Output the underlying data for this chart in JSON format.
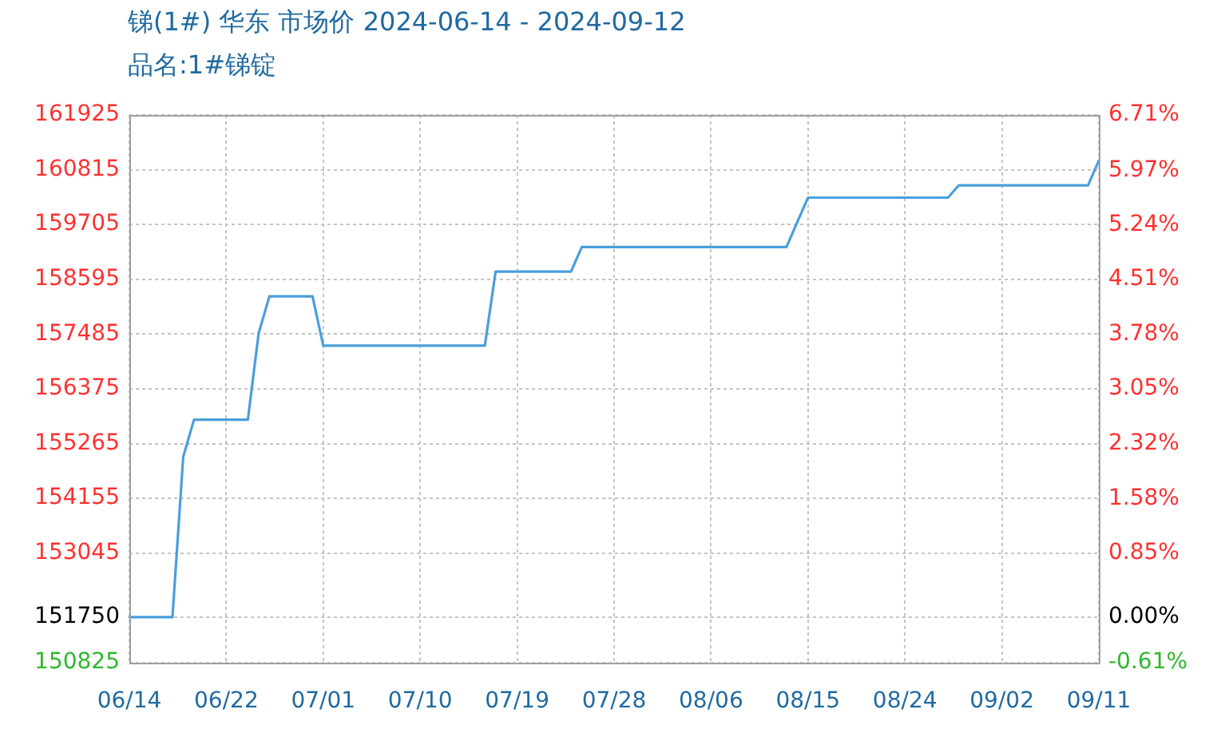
{
  "chart_data": {
    "type": "line",
    "title": "锑(1#) 华东 市场价 2024-06-14 - 2024-09-12",
    "subtitle": "品名:1#锑锭",
    "categories": [
      "06/14",
      null,
      null,
      null,
      null,
      null,
      null,
      null,
      null,
      "06/22",
      null,
      null,
      null,
      null,
      null,
      null,
      null,
      null,
      "07/01",
      null,
      null,
      null,
      null,
      null,
      null,
      null,
      null,
      "07/10",
      null,
      null,
      null,
      null,
      null,
      null,
      null,
      null,
      "07/19",
      null,
      null,
      null,
      null,
      null,
      null,
      null,
      null,
      "07/28",
      null,
      null,
      null,
      null,
      null,
      null,
      null,
      null,
      "08/06",
      null,
      null,
      null,
      null,
      null,
      null,
      null,
      null,
      "08/15",
      null,
      null,
      null,
      null,
      null,
      null,
      null,
      null,
      "08/24",
      null,
      null,
      null,
      null,
      null,
      null,
      null,
      null,
      "09/02",
      null,
      null,
      null,
      null,
      null,
      null,
      null,
      null,
      "09/11"
    ],
    "series": [
      {
        "color": "#4a9fdc",
        "values": [
          151750,
          151750,
          151750,
          151750,
          151750,
          155000,
          155750,
          155750,
          155750,
          155750,
          155750,
          155750,
          157500,
          158250,
          158250,
          158250,
          158250,
          158250,
          157250,
          157250,
          157250,
          157250,
          157250,
          157250,
          157250,
          157250,
          157250,
          157250,
          157250,
          157250,
          157250,
          157250,
          157250,
          157250,
          158750,
          158750,
          158750,
          158750,
          158750,
          158750,
          158750,
          158750,
          159250,
          159250,
          159250,
          159250,
          159250,
          159250,
          159250,
          159250,
          159250,
          159250,
          159250,
          159250,
          159250,
          159250,
          159250,
          159250,
          159250,
          159250,
          159250,
          159250,
          159750,
          160250,
          160250,
          160250,
          160250,
          160250,
          160250,
          160250,
          160250,
          160250,
          160250,
          160250,
          160250,
          160250,
          160250,
          160500,
          160500,
          160500,
          160500,
          160500,
          160500,
          160500,
          160500,
          160500,
          160500,
          160500,
          160500,
          160500,
          161000
        ]
      }
    ],
    "ylim": [
      150825,
      161925
    ],
    "yticks": [
      150825,
      151750,
      153045,
      154155,
      155265,
      156375,
      157485,
      158595,
      159705,
      160815,
      161925
    ],
    "y2lim": [
      -0.61,
      6.71
    ],
    "y2ticks": [
      {
        "value": -0.61,
        "label": "-0.61%"
      },
      {
        "value": 0,
        "label": "0.00%"
      },
      {
        "value": 0.85,
        "label": "0.85%"
      },
      {
        "value": 1.58,
        "label": "1.58%"
      },
      {
        "value": 2.32,
        "label": "2.32%"
      },
      {
        "value": 3.05,
        "label": "3.05%"
      },
      {
        "value": 3.78,
        "label": "3.78%"
      },
      {
        "value": 4.51,
        "label": "4.51%"
      },
      {
        "value": 5.24,
        "label": "5.24%"
      },
      {
        "value": 5.97,
        "label": "5.97%"
      },
      {
        "value": 6.71,
        "label": "6.71%"
      }
    ],
    "grid": true
  }
}
